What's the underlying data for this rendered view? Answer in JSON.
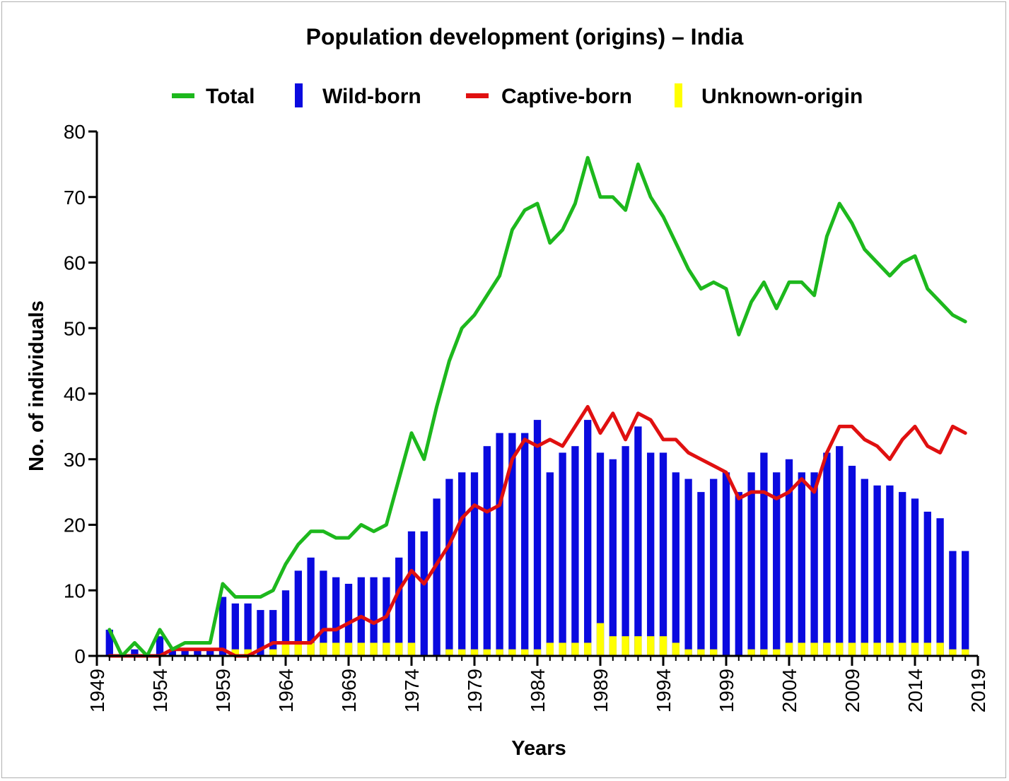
{
  "chart_data": {
    "type": "bar",
    "title": "Population development (origins) – India",
    "xlabel": "Years",
    "ylabel": "No. of individuals",
    "ylim": [
      0,
      80
    ],
    "yticks": [
      0,
      10,
      20,
      30,
      40,
      50,
      60,
      70,
      80
    ],
    "xlim": [
      1949,
      2019
    ],
    "xticks": [
      1949,
      1954,
      1959,
      1964,
      1969,
      1974,
      1979,
      1984,
      1989,
      1994,
      1999,
      2004,
      2009,
      2014,
      2019
    ],
    "legend_position": "top",
    "grid": false,
    "colors": {
      "total": "#1db81d",
      "wild": "#0a0adf",
      "captive": "#e01010",
      "unknown": "#ffff00"
    },
    "legend": [
      "Total",
      "Wild-born",
      "Captive-born",
      "Unknown-origin"
    ],
    "years": [
      1950,
      1951,
      1952,
      1953,
      1954,
      1955,
      1956,
      1957,
      1958,
      1959,
      1960,
      1961,
      1962,
      1963,
      1964,
      1965,
      1966,
      1967,
      1968,
      1969,
      1970,
      1971,
      1972,
      1973,
      1974,
      1975,
      1976,
      1977,
      1978,
      1979,
      1980,
      1981,
      1982,
      1983,
      1984,
      1985,
      1986,
      1987,
      1988,
      1989,
      1990,
      1991,
      1992,
      1993,
      1994,
      1995,
      1996,
      1997,
      1998,
      1999,
      2000,
      2001,
      2002,
      2003,
      2004,
      2005,
      2006,
      2007,
      2008,
      2009,
      2010,
      2011,
      2012,
      2013,
      2014,
      2015,
      2016,
      2017,
      2018
    ],
    "series": [
      {
        "name": "Wild-born",
        "type": "bar",
        "values": [
          4,
          0,
          1,
          0,
          3,
          1,
          1,
          1,
          1,
          9,
          8,
          8,
          7,
          7,
          10,
          13,
          15,
          13,
          12,
          11,
          12,
          12,
          12,
          15,
          19,
          19,
          24,
          27,
          28,
          28,
          32,
          34,
          34,
          34,
          36,
          28,
          31,
          32,
          36,
          31,
          30,
          32,
          35,
          31,
          31,
          28,
          27,
          25,
          27,
          28,
          25,
          28,
          31,
          28,
          30,
          28,
          28,
          31,
          32,
          29,
          27,
          26,
          26,
          25,
          24,
          22,
          21,
          16,
          16
        ]
      },
      {
        "name": "Unknown-origin",
        "type": "bar",
        "values": [
          0,
          0,
          0,
          0,
          0,
          0,
          0,
          0,
          0,
          0,
          1,
          1,
          0,
          1,
          2,
          2,
          2,
          2,
          2,
          2,
          2,
          2,
          2,
          2,
          2,
          0,
          0,
          1,
          1,
          1,
          1,
          1,
          1,
          1,
          1,
          2,
          2,
          2,
          2,
          5,
          3,
          3,
          3,
          3,
          3,
          2,
          1,
          1,
          1,
          0,
          0,
          1,
          1,
          1,
          2,
          2,
          2,
          2,
          2,
          2,
          2,
          2,
          2,
          2,
          2,
          2,
          2,
          1,
          1
        ]
      },
      {
        "name": "Total",
        "type": "line",
        "values": [
          4,
          0,
          2,
          0,
          4,
          1,
          2,
          2,
          2,
          11,
          9,
          9,
          9,
          10,
          14,
          17,
          19,
          19,
          18,
          18,
          20,
          19,
          20,
          27,
          34,
          30,
          38,
          45,
          50,
          52,
          55,
          58,
          65,
          68,
          69,
          63,
          65,
          69,
          76,
          70,
          70,
          68,
          75,
          70,
          67,
          63,
          59,
          56,
          57,
          56,
          49,
          54,
          57,
          53,
          57,
          57,
          55,
          64,
          69,
          66,
          62,
          60,
          58,
          60,
          61,
          56,
          54,
          52,
          51
        ]
      },
      {
        "name": "Captive-born",
        "type": "line",
        "values": [
          0,
          0,
          0,
          0,
          0,
          1,
          1,
          1,
          1,
          1,
          0,
          0,
          1,
          2,
          2,
          2,
          2,
          4,
          4,
          5,
          6,
          5,
          6,
          10,
          13,
          11,
          14,
          17,
          21,
          23,
          22,
          23,
          30,
          33,
          32,
          33,
          32,
          35,
          38,
          34,
          37,
          33,
          37,
          36,
          33,
          33,
          31,
          30,
          29,
          28,
          24,
          25,
          25,
          24,
          25,
          27,
          25,
          31,
          35,
          35,
          33,
          32,
          30,
          33,
          35,
          32,
          31,
          35,
          34
        ]
      }
    ]
  }
}
